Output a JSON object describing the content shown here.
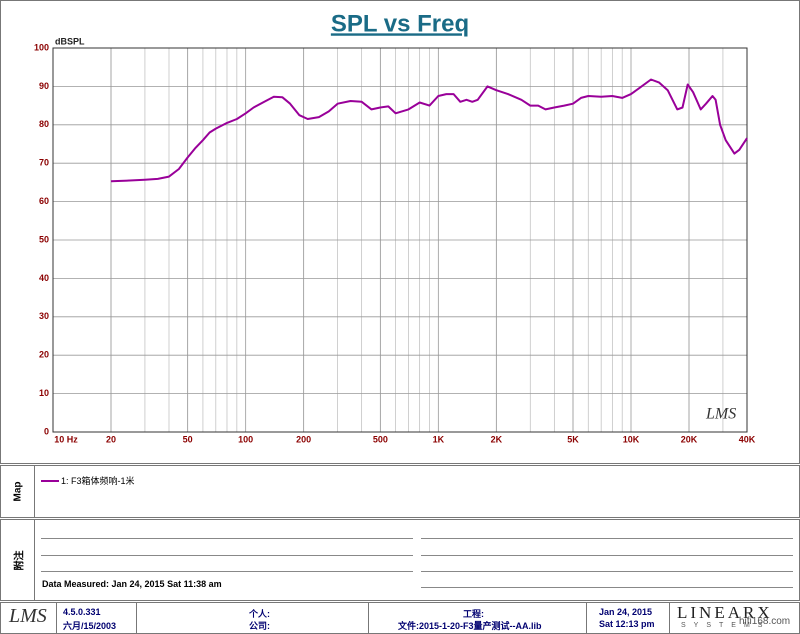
{
  "chart_data": {
    "type": "line",
    "title": "SPL vs Freq",
    "y_label": "dBSPL",
    "logo": "LMS",
    "xscale": "log",
    "grid": true,
    "xlim": [
      10,
      40000
    ],
    "xticks": [
      {
        "value": 10,
        "label": "10 Hz"
      },
      20,
      50,
      100,
      200,
      500,
      {
        "value": 1000,
        "label": "1K"
      },
      {
        "value": 2000,
        "label": "2K"
      },
      {
        "value": 5000,
        "label": "5K"
      },
      {
        "value": 10000,
        "label": "10K"
      },
      {
        "value": 20000,
        "label": "20K"
      },
      {
        "value": 40000,
        "label": "40K"
      }
    ],
    "ylim": [
      0,
      100
    ],
    "yticks": [
      0,
      10,
      20,
      30,
      40,
      50,
      60,
      70,
      80,
      90,
      100
    ],
    "x": [
      20,
      25,
      30,
      35,
      40,
      45,
      50,
      55,
      60,
      65,
      70,
      80,
      90,
      100,
      110,
      125,
      140,
      155,
      170,
      190,
      210,
      240,
      270,
      300,
      350,
      400,
      450,
      500,
      550,
      600,
      700,
      800,
      900,
      1000,
      1100,
      1200,
      1300,
      1400,
      1500,
      1600,
      1800,
      2000,
      2300,
      2700,
      3000,
      3300,
      3600,
      4000,
      4500,
      5000,
      5500,
      6000,
      7000,
      8000,
      9000,
      10000,
      11000,
      12700,
      14000,
      15500,
      17400,
      18500,
      19700,
      21000,
      23000,
      24500,
      26500,
      27500,
      29000,
      31000,
      34400,
      36500,
      40000
    ],
    "series": [
      {
        "name": "1: F3箱体频响-1米",
        "color": "#990099",
        "values": [
          65.3,
          65.5,
          65.7,
          65.9,
          66.5,
          68.5,
          71.5,
          74,
          76,
          78,
          79,
          80.5,
          81.5,
          83,
          84.5,
          86,
          87.3,
          87.2,
          85.5,
          82.5,
          81.5,
          82,
          83.5,
          85.5,
          86.2,
          86,
          84,
          84.5,
          84.8,
          83,
          84,
          85.8,
          85,
          87.5,
          88,
          88,
          86,
          86.5,
          86,
          86.5,
          90,
          89,
          88,
          86.5,
          85,
          85,
          84,
          84.5,
          85,
          85.5,
          87,
          87.5,
          87.3,
          87.5,
          87,
          88,
          89.5,
          91.8,
          91,
          89,
          84,
          84.5,
          90.5,
          88.5,
          84,
          85.5,
          87.5,
          86.5,
          80,
          76,
          72.5,
          73.5,
          76.5
        ]
      }
    ]
  },
  "panels": {
    "map_label": "Map",
    "notes_label": "附注",
    "data_measured": "Data Measured: Jan 24, 2015  Sat 11:38 am"
  },
  "footer": {
    "logo": "LMS",
    "version": "4.5.0.331",
    "build_date": "六月/15/2003",
    "person": "个人:",
    "company": "公司:",
    "project": "工程:",
    "file": "文件:2015-1-20-F3量产测试--AA.lib",
    "date": "Jan 24, 2015",
    "time": "Sat 12:13 pm",
    "brand": "LINEARX",
    "brand_sub": "SYSTEMS",
    "watermark": "hifi168.com"
  }
}
